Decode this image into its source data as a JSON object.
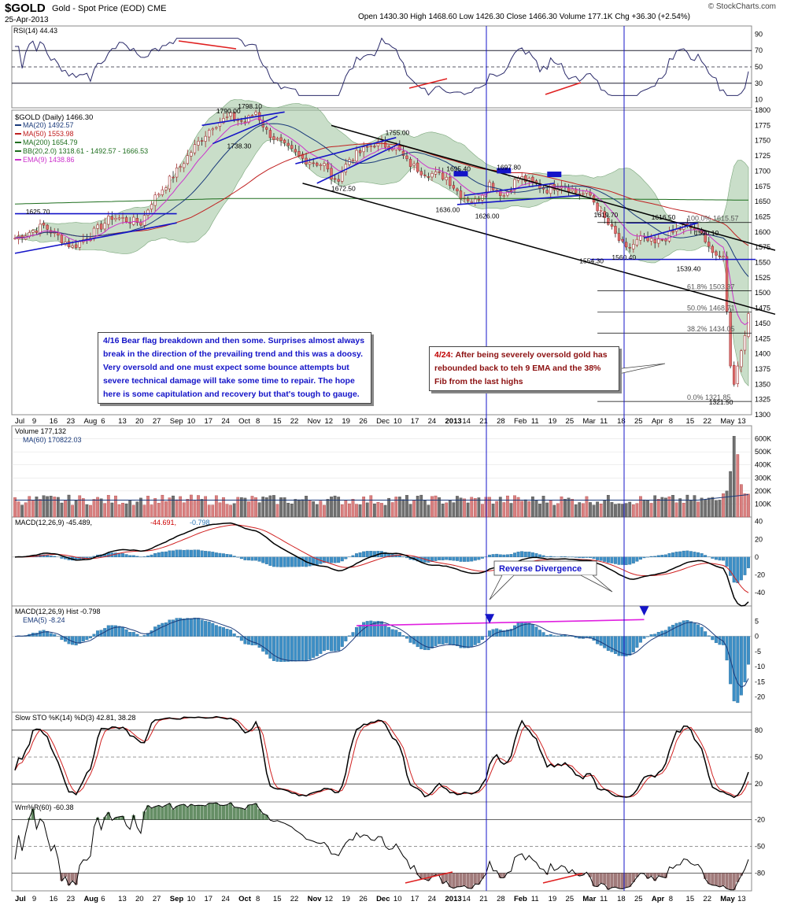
{
  "header": {
    "symbol": "$GOLD",
    "description": "Gold - Spot Price (EOD)",
    "exchange": "CME",
    "date": "25-Apr-2013",
    "ohlc": "Open 1430.30   High 1468.60   Low 1426.30   Close 1466.30   Volume 177.1K   Chg +36.30 (+2.54%)",
    "watermark": "© StockCharts.com"
  },
  "colors": {
    "up": "#e07070",
    "down": "#202020",
    "ma20": "#1a3a7a",
    "ma50": "#c02020",
    "ma200": "#1e6e1e",
    "bb_fill": "#9cc39c",
    "ema9": "#cc33cc",
    "annot": "#1414c8",
    "red_line": "#e02020",
    "hist": "#3d8fc6"
  },
  "notes": {
    "bear_flag": "4/16 Bear flag breakdown and then some. Surprises almost always break in the direction of the prevailing trend and this was a doosy. Very oversold and one must expect some bounce attempts but severe technical damage will take some time to repair. The hope here is some capitulation and recovery but that's tough to gauge.",
    "rebound_date": "4/24:",
    "rebound": "After being severely oversold gold has rebounded back to teh 9 EMA and the 38% Fib from the last highs",
    "reverse_divergence": "Reverse Divergence"
  },
  "chart_data": [
    {
      "type": "line",
      "panel": "rsi",
      "series": [
        {
          "name": "RSI(14)",
          "last": "44.43"
        }
      ],
      "ylim": [
        0,
        100
      ],
      "ticks": [
        10,
        30,
        50,
        70,
        90
      ],
      "reference_lines": [
        30,
        50,
        70
      ]
    },
    {
      "type": "candlestick",
      "panel": "price",
      "title": "$GOLD (Daily) 1466.30",
      "legend": [
        "MA(20) 1492.57",
        "MA(50) 1553.98",
        "MA(200) 1654.79",
        "BB(20,2.0) 1318.61 - 1492.57 - 1666.53",
        "EMA(9) 1438.86"
      ],
      "ylim": [
        1300,
        1800
      ],
      "ticks": [
        1300,
        1325,
        1350,
        1375,
        1400,
        1425,
        1450,
        1475,
        1500,
        1525,
        1550,
        1575,
        1600,
        1625,
        1650,
        1675,
        1700,
        1725,
        1750,
        1775,
        1800
      ],
      "x_labels": [
        "Jul",
        "9",
        "16",
        "23",
        "Aug",
        "6",
        "13",
        "20",
        "27",
        "Sep",
        "10",
        "17",
        "24",
        "Oct",
        "8",
        "15",
        "22",
        "Nov",
        "12",
        "19",
        "26",
        "Dec",
        "10",
        "17",
        "24",
        "2013",
        "14",
        "21",
        "28",
        "Feb",
        "11",
        "19",
        "25",
        "Mar",
        "11",
        "18",
        "25",
        "Apr",
        "8",
        "15",
        "22",
        "May",
        "13"
      ],
      "key_levels": [
        {
          "label": "1625.70",
          "value": 1625.7
        },
        {
          "label": "1790.00",
          "value": 1790.0
        },
        {
          "label": "1798.10",
          "value": 1798.1
        },
        {
          "label": "1738.30",
          "value": 1738.3
        },
        {
          "label": "1755.00",
          "value": 1755.0
        },
        {
          "label": "1672.50",
          "value": 1672.5
        },
        {
          "label": "1695.40",
          "value": 1695.4
        },
        {
          "label": "1697.80",
          "value": 1697.8
        },
        {
          "label": "1636.00",
          "value": 1636.0
        },
        {
          "label": "1626.00",
          "value": 1626.0
        },
        {
          "label": "1619.70",
          "value": 1619.7
        },
        {
          "label": "1616.50",
          "value": 1616.5
        },
        {
          "label": "1590.10",
          "value": 1590.1
        },
        {
          "label": "1554.30",
          "value": 1554.3
        },
        {
          "label": "1560.40",
          "value": 1560.4
        },
        {
          "label": "1539.40",
          "value": 1539.4
        },
        {
          "label": "1321.50",
          "value": 1321.5
        }
      ],
      "fib_levels": [
        {
          "label": "100.0% 1615.57",
          "value": 1615.57
        },
        {
          "label": "61.8% 1503.37",
          "value": 1503.37
        },
        {
          "label": "50.0% 1468.71",
          "value": 1468.71
        },
        {
          "label": "38.2% 1434.05",
          "value": 1434.05
        },
        {
          "label": "0.0% 1321.85",
          "value": 1321.85
        }
      ]
    },
    {
      "type": "bar",
      "panel": "volume",
      "series": [
        {
          "name": "Volume 177,132"
        },
        {
          "name": "MA(60) 170822.03"
        }
      ],
      "ticks": [
        "100K",
        "200K",
        "300K",
        "400K",
        "500K",
        "600K"
      ],
      "ylim": [
        0,
        700
      ]
    },
    {
      "type": "line",
      "panel": "macd",
      "series": [
        {
          "name": "MACD(12,26,9) -45.489"
        },
        {
          "name": "-44.691"
        },
        {
          "name": "-0.798"
        }
      ],
      "ylim": [
        -55,
        45
      ],
      "ticks": [
        -40,
        -20,
        0,
        20,
        40
      ]
    },
    {
      "type": "bar",
      "panel": "macd_hist",
      "series": [
        {
          "name": "MACD(12,26,9) Hist -0.798"
        },
        {
          "name": "EMA(5) -8.24"
        }
      ],
      "ylim": [
        -25,
        10
      ],
      "ticks": [
        -20,
        -15,
        -10,
        -5,
        0,
        5
      ]
    },
    {
      "type": "line",
      "panel": "slow_sto",
      "series": [
        {
          "name": "Slow STO %K(14) %D(3) 42.81, 38.28"
        }
      ],
      "ylim": [
        0,
        100
      ],
      "ticks": [
        20,
        50,
        80
      ],
      "reference_lines": [
        20,
        50,
        80
      ]
    },
    {
      "type": "line",
      "panel": "williams",
      "series": [
        {
          "name": "Wm%R(60) -60.38"
        }
      ],
      "ylim": [
        -100,
        0
      ],
      "ticks": [
        -80,
        -50,
        -20
      ],
      "reference_lines": [
        -80,
        -50,
        -20
      ]
    }
  ]
}
